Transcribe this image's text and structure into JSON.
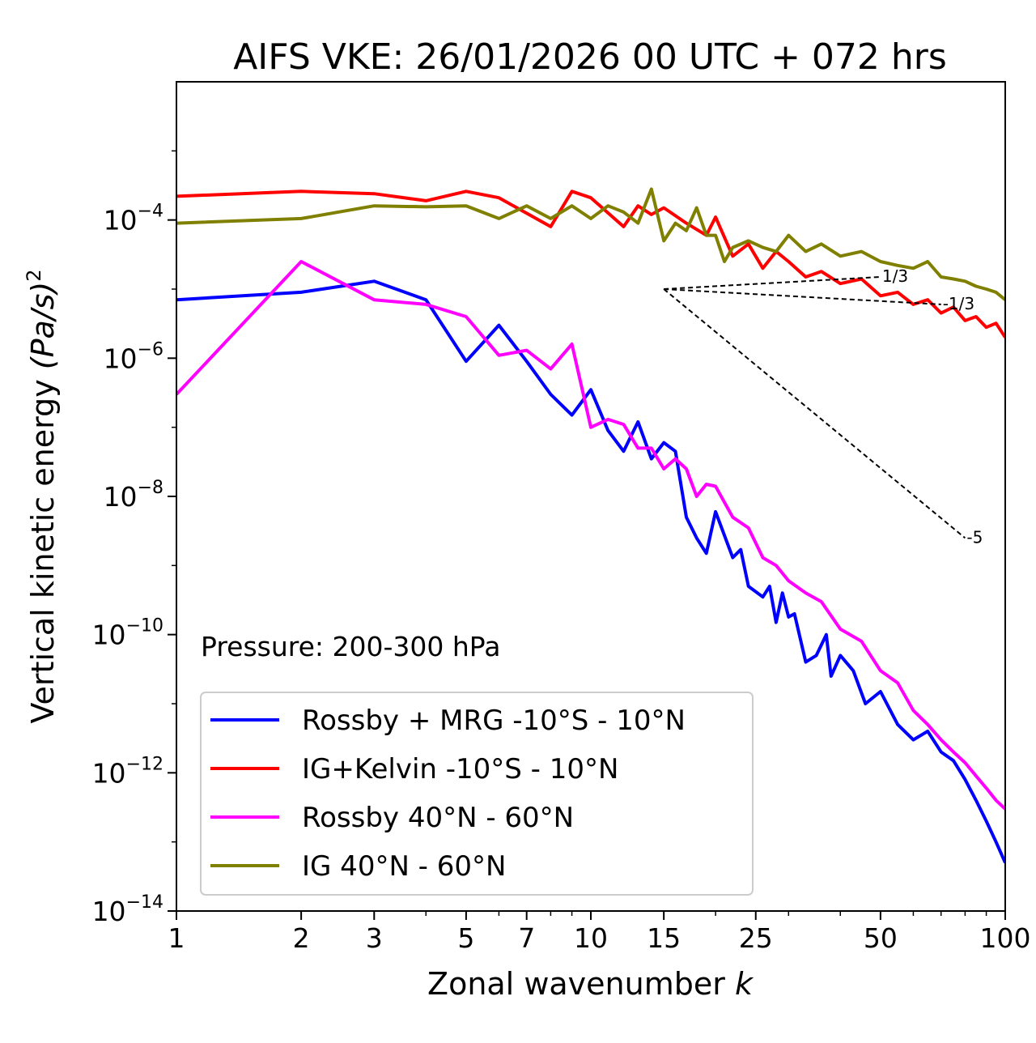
{
  "chart_data": {
    "type": "line",
    "title": "AIFS VKE: 26/01/2026 00 UTC + 072 hrs",
    "xlabel": "Zonal wavenumber",
    "xlabel_var": "k",
    "ylabel": "Vertical kinetic energy",
    "ylabel_unit": "(Pa/s)",
    "ylabel_unit_exp": "2",
    "xscale": "log",
    "yscale": "log",
    "xlim": [
      1,
      100
    ],
    "ylim": [
      1e-14,
      0.01
    ],
    "xticks": [
      1,
      2,
      3,
      5,
      7,
      10,
      15,
      25,
      50,
      100
    ],
    "yticks": [
      {
        "value": 0.0001,
        "base": "10",
        "exp": "−4"
      },
      {
        "value": 1e-06,
        "base": "10",
        "exp": "−6"
      },
      {
        "value": 1e-08,
        "base": "10",
        "exp": "−8"
      },
      {
        "value": 1e-10,
        "base": "10",
        "exp": "−10"
      },
      {
        "value": 1e-12,
        "base": "10",
        "exp": "−12"
      },
      {
        "value": 1e-14,
        "base": "10",
        "exp": "−14"
      }
    ],
    "annotation": "Pressure: 200-300 hPa",
    "legend_position": "lower-left",
    "series": [
      {
        "name": "Rossby + MRG -10°S - 10°N",
        "color": "#0000ff",
        "points": [
          [
            1,
            7e-06
          ],
          [
            2,
            9e-06
          ],
          [
            3,
            1.3e-05
          ],
          [
            4,
            7e-06
          ],
          [
            5,
            9e-07
          ],
          [
            6,
            3e-06
          ],
          [
            7,
            9e-07
          ],
          [
            8,
            3e-07
          ],
          [
            9,
            1.5e-07
          ],
          [
            10,
            3.5e-07
          ],
          [
            11,
            9e-08
          ],
          [
            12,
            4.5e-08
          ],
          [
            13,
            1.2e-07
          ],
          [
            14,
            3.5e-08
          ],
          [
            15,
            6e-08
          ],
          [
            16,
            4.5e-08
          ],
          [
            17,
            5e-09
          ],
          [
            18,
            2.5e-09
          ],
          [
            19,
            1.5e-09
          ],
          [
            20,
            6e-09
          ],
          [
            22,
            1.3e-09
          ],
          [
            23,
            1.7e-09
          ],
          [
            24,
            5e-10
          ],
          [
            26,
            3.5e-10
          ],
          [
            27,
            5e-10
          ],
          [
            28,
            1.5e-10
          ],
          [
            29,
            4e-10
          ],
          [
            30,
            1.8e-10
          ],
          [
            31,
            2e-10
          ],
          [
            33,
            4e-11
          ],
          [
            35,
            5e-11
          ],
          [
            37,
            1e-10
          ],
          [
            38,
            2.5e-11
          ],
          [
            40,
            5e-11
          ],
          [
            43,
            3e-11
          ],
          [
            46,
            1e-11
          ],
          [
            50,
            1.5e-11
          ],
          [
            55,
            5e-12
          ],
          [
            60,
            3e-12
          ],
          [
            65,
            4e-12
          ],
          [
            70,
            2e-12
          ],
          [
            75,
            1.5e-12
          ],
          [
            80,
            8e-13
          ],
          [
            85,
            4e-13
          ],
          [
            90,
            2e-13
          ],
          [
            95,
            1e-13
          ],
          [
            100,
            5e-14
          ]
        ]
      },
      {
        "name": "IG+Kelvin -10°S - 10°N",
        "color": "#ff0000",
        "points": [
          [
            1,
            0.00022
          ],
          [
            2,
            0.00026
          ],
          [
            3,
            0.00024
          ],
          [
            4,
            0.00019
          ],
          [
            5,
            0.00026
          ],
          [
            6,
            0.00021
          ],
          [
            8,
            8e-05
          ],
          [
            9,
            0.00026
          ],
          [
            10,
            0.00021
          ],
          [
            12,
            8e-05
          ],
          [
            13,
            0.00016
          ],
          [
            14,
            0.00012
          ],
          [
            15,
            0.00015
          ],
          [
            17,
            9e-05
          ],
          [
            19,
            6e-05
          ],
          [
            20,
            0.00011
          ],
          [
            22,
            3e-05
          ],
          [
            24,
            4.5e-05
          ],
          [
            26,
            2e-05
          ],
          [
            28,
            3.5e-05
          ],
          [
            30,
            2.5e-05
          ],
          [
            33,
            1.5e-05
          ],
          [
            36,
            1.8e-05
          ],
          [
            40,
            1.2e-05
          ],
          [
            45,
            1.4e-05
          ],
          [
            50,
            8e-06
          ],
          [
            55,
            9e-06
          ],
          [
            60,
            6e-06
          ],
          [
            65,
            7e-06
          ],
          [
            70,
            4.5e-06
          ],
          [
            75,
            5.5e-06
          ],
          [
            80,
            3.5e-06
          ],
          [
            85,
            4e-06
          ],
          [
            90,
            2.8e-06
          ],
          [
            95,
            3.2e-06
          ],
          [
            100,
            2e-06
          ]
        ]
      },
      {
        "name": "Rossby 40°N - 60°N",
        "color": "#ff00ff",
        "points": [
          [
            1,
            3e-07
          ],
          [
            2,
            2.5e-05
          ],
          [
            3,
            7e-06
          ],
          [
            4,
            6e-06
          ],
          [
            5,
            4e-06
          ],
          [
            6,
            1.1e-06
          ],
          [
            7,
            1.3e-06
          ],
          [
            8,
            7e-07
          ],
          [
            9,
            1.6e-06
          ],
          [
            10,
            1e-07
          ],
          [
            11,
            1.3e-07
          ],
          [
            12,
            1.1e-07
          ],
          [
            13,
            5e-08
          ],
          [
            14,
            5e-08
          ],
          [
            15,
            2.5e-08
          ],
          [
            16,
            3.5e-08
          ],
          [
            17,
            2.5e-08
          ],
          [
            18,
            1e-08
          ],
          [
            19,
            1.5e-08
          ],
          [
            20,
            1.4e-08
          ],
          [
            22,
            5e-09
          ],
          [
            24,
            3.5e-09
          ],
          [
            26,
            1.3e-09
          ],
          [
            28,
            1e-09
          ],
          [
            30,
            6e-10
          ],
          [
            33,
            4e-10
          ],
          [
            36,
            3e-10
          ],
          [
            40,
            1.2e-10
          ],
          [
            45,
            8e-11
          ],
          [
            50,
            3e-11
          ],
          [
            55,
            2e-11
          ],
          [
            60,
            8e-12
          ],
          [
            65,
            5e-12
          ],
          [
            70,
            3e-12
          ],
          [
            75,
            2e-12
          ],
          [
            80,
            1.4e-12
          ],
          [
            85,
            9e-13
          ],
          [
            90,
            6e-13
          ],
          [
            95,
            4e-13
          ],
          [
            100,
            3e-13
          ]
        ]
      },
      {
        "name": "IG 40°N - 60°N",
        "color": "#808000",
        "points": [
          [
            1,
            9e-05
          ],
          [
            2,
            0.000105
          ],
          [
            3,
            0.00016
          ],
          [
            4,
            0.000155
          ],
          [
            5,
            0.00016
          ],
          [
            6,
            0.000105
          ],
          [
            7,
            0.00016
          ],
          [
            8,
            0.000105
          ],
          [
            9,
            0.00016
          ],
          [
            10,
            0.000105
          ],
          [
            11,
            0.00016
          ],
          [
            12,
            0.00013
          ],
          [
            13,
            9e-05
          ],
          [
            14,
            0.00028
          ],
          [
            15,
            5e-05
          ],
          [
            16,
            9e-05
          ],
          [
            17,
            7e-05
          ],
          [
            18,
            0.00015
          ],
          [
            19,
            6e-05
          ],
          [
            20,
            6e-05
          ],
          [
            21,
            2.5e-05
          ],
          [
            22,
            4e-05
          ],
          [
            24,
            5e-05
          ],
          [
            26,
            4e-05
          ],
          [
            28,
            3.5e-05
          ],
          [
            30,
            6e-05
          ],
          [
            33,
            3.5e-05
          ],
          [
            36,
            4.5e-05
          ],
          [
            40,
            3e-05
          ],
          [
            45,
            3.5e-05
          ],
          [
            50,
            2.5e-05
          ],
          [
            55,
            2.2e-05
          ],
          [
            60,
            2e-05
          ],
          [
            65,
            2.5e-05
          ],
          [
            70,
            1.5e-05
          ],
          [
            75,
            1.4e-05
          ],
          [
            80,
            1.3e-05
          ],
          [
            85,
            1.1e-05
          ],
          [
            90,
            1e-05
          ],
          [
            95,
            9e-06
          ],
          [
            100,
            7e-06
          ]
        ]
      }
    ],
    "reference_lines": [
      {
        "label": "1/3",
        "from": [
          15,
          1e-05
        ],
        "to": [
          50,
          1.5e-05
        ]
      },
      {
        "label": "-1/3",
        "from": [
          15,
          1e-05
        ],
        "to": [
          70,
          6e-06
        ]
      },
      {
        "label": "-5",
        "from": [
          15,
          1e-05
        ],
        "to": [
          80,
          2.5e-09
        ]
      }
    ]
  }
}
